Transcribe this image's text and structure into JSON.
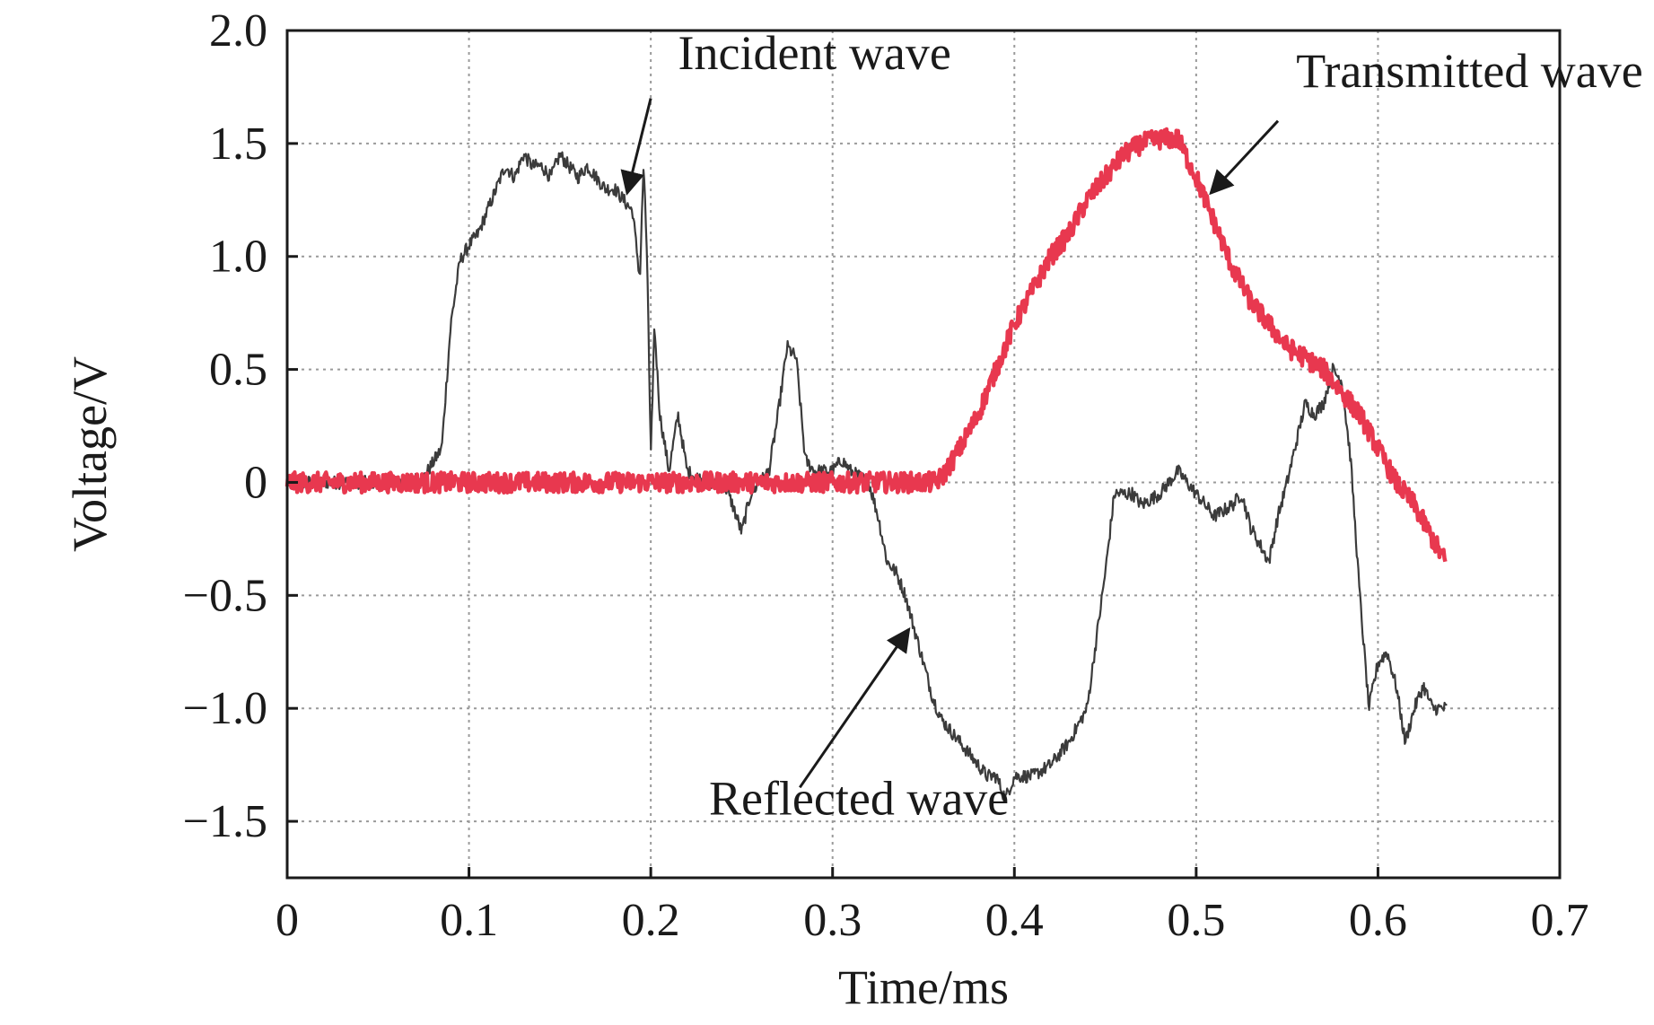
{
  "chart_data": {
    "type": "line",
    "title": "",
    "xlabel": "Time/ms",
    "ylabel": "Voltage/V",
    "xlim": [
      0,
      0.7
    ],
    "ylim": [
      -1.75,
      2.0
    ],
    "grid": true,
    "x_ticks": [
      0,
      0.1,
      0.2,
      0.3,
      0.4,
      0.5,
      0.6,
      0.7
    ],
    "x_tick_labels": [
      "0",
      "0.1",
      "0.2",
      "0.3",
      "0.4",
      "0.5",
      "0.6",
      "0.7"
    ],
    "y_ticks": [
      2.0,
      1.5,
      1.0,
      0.5,
      0,
      -0.5,
      -1.0,
      -1.5
    ],
    "y_tick_labels": [
      "2.0",
      "1.5",
      "1.0",
      "0.5",
      "0",
      "−0.5",
      "−1.0",
      "−1.5"
    ],
    "colors": {
      "dark_series": "#3b3b3b",
      "red_series": "#e8384f",
      "axis": "#1a1a1a",
      "grid": "#9a9a9a"
    },
    "series": [
      {
        "name": "Incident wave + Reflected wave",
        "color": "#3b3b3b",
        "x": [
          0,
          0.02,
          0.04,
          0.06,
          0.075,
          0.085,
          0.09,
          0.095,
          0.1,
          0.105,
          0.11,
          0.115,
          0.12,
          0.125,
          0.13,
          0.135,
          0.14,
          0.145,
          0.15,
          0.155,
          0.16,
          0.165,
          0.17,
          0.175,
          0.18,
          0.185,
          0.19,
          0.194,
          0.196,
          0.198,
          0.2,
          0.202,
          0.205,
          0.21,
          0.215,
          0.22,
          0.23,
          0.24,
          0.245,
          0.25,
          0.255,
          0.26,
          0.265,
          0.27,
          0.275,
          0.28,
          0.285,
          0.29,
          0.3,
          0.305,
          0.31,
          0.32,
          0.325,
          0.33,
          0.335,
          0.34,
          0.345,
          0.35,
          0.355,
          0.36,
          0.37,
          0.38,
          0.385,
          0.39,
          0.395,
          0.4,
          0.41,
          0.42,
          0.43,
          0.44,
          0.45,
          0.455,
          0.46,
          0.465,
          0.47,
          0.48,
          0.49,
          0.5,
          0.51,
          0.52,
          0.525,
          0.53,
          0.54,
          0.545,
          0.55,
          0.56,
          0.565,
          0.57,
          0.575,
          0.58,
          0.585,
          0.59,
          0.595,
          0.6,
          0.605,
          0.61,
          0.615,
          0.62,
          0.625,
          0.63,
          0.635,
          0.638
        ],
        "y": [
          0.0,
          0.0,
          0.0,
          0.0,
          0.02,
          0.15,
          0.7,
          0.98,
          1.05,
          1.1,
          1.2,
          1.3,
          1.4,
          1.35,
          1.45,
          1.4,
          1.4,
          1.35,
          1.45,
          1.4,
          1.35,
          1.4,
          1.35,
          1.3,
          1.3,
          1.25,
          1.2,
          0.9,
          1.4,
          1.0,
          0.1,
          0.7,
          0.3,
          0.05,
          0.3,
          0.05,
          0.0,
          0.0,
          -0.1,
          -0.22,
          -0.05,
          0.0,
          0.05,
          0.3,
          0.6,
          0.55,
          0.1,
          0.05,
          0.05,
          0.1,
          0.05,
          0.0,
          -0.15,
          -0.35,
          -0.4,
          -0.5,
          -0.65,
          -0.8,
          -0.95,
          -1.05,
          -1.15,
          -1.25,
          -1.3,
          -1.3,
          -1.4,
          -1.3,
          -1.3,
          -1.25,
          -1.15,
          -1.0,
          -0.4,
          -0.05,
          -0.05,
          -0.05,
          -0.1,
          -0.05,
          0.05,
          -0.05,
          -0.15,
          -0.1,
          -0.05,
          -0.2,
          -0.35,
          -0.15,
          0.0,
          0.35,
          0.3,
          0.35,
          0.5,
          0.45,
          0.1,
          -0.5,
          -1.0,
          -0.8,
          -0.75,
          -0.9,
          -1.15,
          -1.0,
          -0.9,
          -1.0,
          -1.0,
          -1.0
        ]
      },
      {
        "name": "Transmitted wave",
        "color": "#e8384f",
        "x": [
          0,
          0.05,
          0.1,
          0.15,
          0.2,
          0.25,
          0.3,
          0.33,
          0.355,
          0.36,
          0.37,
          0.38,
          0.39,
          0.4,
          0.41,
          0.42,
          0.43,
          0.44,
          0.45,
          0.46,
          0.47,
          0.48,
          0.49,
          0.5,
          0.51,
          0.52,
          0.53,
          0.54,
          0.55,
          0.56,
          0.57,
          0.58,
          0.59,
          0.6,
          0.61,
          0.62,
          0.63,
          0.637
        ],
        "y": [
          0.0,
          0.0,
          0.0,
          0.0,
          0.0,
          0.0,
          0.0,
          0.0,
          0.0,
          0.02,
          0.15,
          0.3,
          0.5,
          0.7,
          0.85,
          1.0,
          1.1,
          1.25,
          1.35,
          1.45,
          1.5,
          1.52,
          1.52,
          1.35,
          1.15,
          0.95,
          0.8,
          0.7,
          0.6,
          0.55,
          0.5,
          0.4,
          0.3,
          0.15,
          0.0,
          -0.1,
          -0.25,
          -0.35
        ]
      }
    ],
    "annotations": [
      {
        "text": "Incident wave",
        "text_at": [
          0.215,
          1.83
        ],
        "arrow_from": [
          0.2,
          1.7
        ],
        "arrow_to": [
          0.187,
          1.28
        ]
      },
      {
        "text": "Transmitted wave",
        "text_at": [
          0.555,
          1.75
        ],
        "arrow_from": [
          0.545,
          1.6
        ],
        "arrow_to": [
          0.508,
          1.28
        ]
      },
      {
        "text": "Reflected wave",
        "text_at": [
          0.232,
          -1.47
        ],
        "arrow_from": [
          0.282,
          -1.35
        ],
        "arrow_to": [
          0.342,
          -0.65
        ]
      }
    ]
  }
}
